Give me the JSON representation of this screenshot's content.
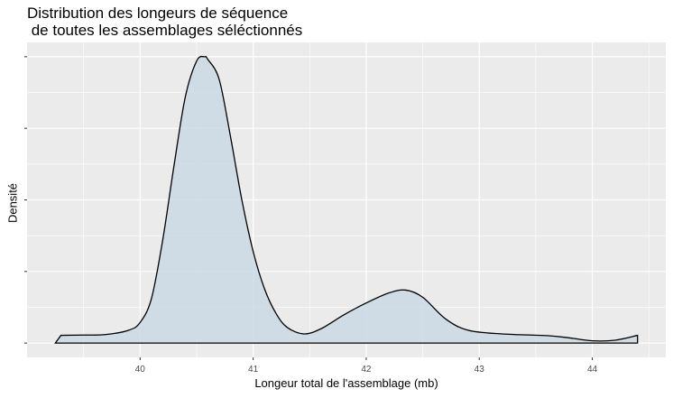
{
  "chart_data": {
    "type": "area",
    "title": "Distribution des longeurs de séquence",
    "subtitle": " de toutes les assemblages séléctionnés",
    "xlabel": "Longeur total de l'assemblage (mb)",
    "ylabel": "Densité",
    "xlim": [
      39.0,
      44.65
    ],
    "ylim": [
      -0.05,
      1.05
    ],
    "x_ticks": [
      40,
      41,
      42,
      43,
      44
    ],
    "x_tick_labels": [
      "40",
      "41",
      "42",
      "43",
      "44"
    ],
    "y_tick_count": 5,
    "y_tick_labels_shown": false,
    "grid": true,
    "legend": "none",
    "fill_color": "#cad9e4",
    "line_color": "#000000",
    "panel_color": "#ebebeb",
    "grid_color": "#ffffff",
    "series": [
      {
        "x": [
          39.25,
          39.3,
          39.5,
          39.7,
          39.9,
          40.0,
          40.1,
          40.2,
          40.3,
          40.4,
          40.5,
          40.57,
          40.6,
          40.7,
          40.8,
          40.9,
          41.0,
          41.1,
          41.2,
          41.3,
          41.45,
          41.6,
          41.8,
          42.0,
          42.2,
          42.35,
          42.5,
          42.7,
          42.9,
          43.2,
          43.6,
          43.8,
          44.0,
          44.2,
          44.4,
          44.4
        ],
        "y": [
          0.0,
          0.027,
          0.028,
          0.03,
          0.045,
          0.072,
          0.155,
          0.36,
          0.62,
          0.86,
          0.985,
          1.0,
          0.99,
          0.92,
          0.72,
          0.5,
          0.32,
          0.19,
          0.105,
          0.055,
          0.032,
          0.05,
          0.098,
          0.14,
          0.175,
          0.185,
          0.16,
          0.085,
          0.045,
          0.032,
          0.026,
          0.018,
          0.008,
          0.01,
          0.027,
          0.0
        ]
      }
    ]
  }
}
